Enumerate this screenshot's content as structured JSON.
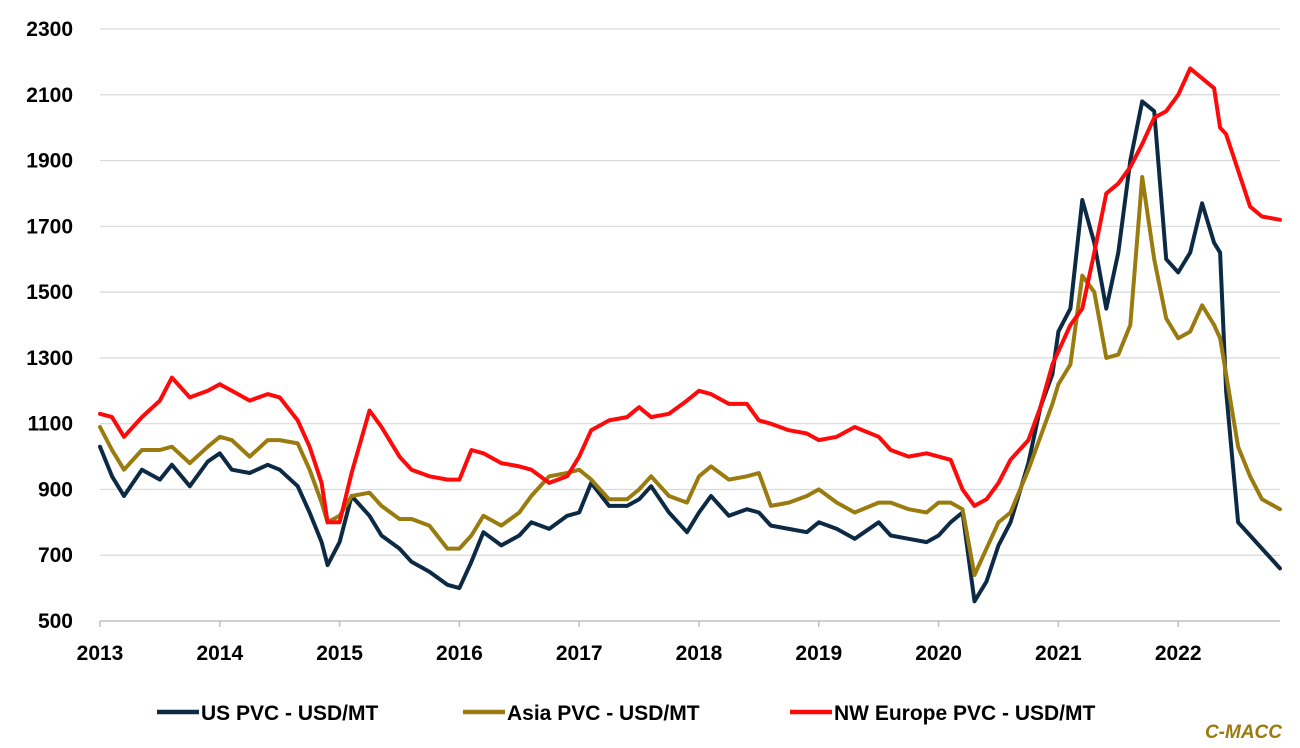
{
  "chart_data": {
    "type": "line",
    "title": "",
    "xlabel": "",
    "ylabel": "",
    "xlim": [
      2013.0,
      2022.85
    ],
    "ylim": [
      500,
      2300
    ],
    "y_ticks": [
      500,
      700,
      900,
      1100,
      1300,
      1500,
      1700,
      1900,
      2100,
      2300
    ],
    "x_ticks": [
      2013,
      2014,
      2015,
      2016,
      2017,
      2018,
      2019,
      2020,
      2021,
      2022
    ],
    "x_tick_labels": [
      "2013",
      "2014",
      "2015",
      "2016",
      "2017",
      "2018",
      "2019",
      "2020",
      "2021",
      "2022"
    ],
    "grid": "horizontal",
    "legend_position": "bottom",
    "credit": "C-MACC",
    "credit_color": "#9A7B10",
    "series": [
      {
        "name": "US PVC - USD/MT",
        "color": "#0D2A45",
        "x": [
          2013.0,
          2013.1,
          2013.2,
          2013.35,
          2013.5,
          2013.6,
          2013.75,
          2013.9,
          2014.0,
          2014.1,
          2014.25,
          2014.4,
          2014.5,
          2014.65,
          2014.75,
          2014.85,
          2014.9,
          2015.0,
          2015.1,
          2015.25,
          2015.35,
          2015.5,
          2015.6,
          2015.75,
          2015.9,
          2016.0,
          2016.1,
          2016.2,
          2016.35,
          2016.5,
          2016.6,
          2016.75,
          2016.9,
          2017.0,
          2017.1,
          2017.25,
          2017.4,
          2017.5,
          2017.6,
          2017.75,
          2017.9,
          2018.0,
          2018.1,
          2018.25,
          2018.4,
          2018.5,
          2018.6,
          2018.75,
          2018.9,
          2019.0,
          2019.15,
          2019.3,
          2019.5,
          2019.6,
          2019.75,
          2019.9,
          2020.0,
          2020.1,
          2020.2,
          2020.3,
          2020.4,
          2020.5,
          2020.6,
          2020.75,
          2020.85,
          2020.95,
          2021.0,
          2021.1,
          2021.2,
          2021.3,
          2021.4,
          2021.5,
          2021.6,
          2021.7,
          2021.8,
          2021.9,
          2022.0,
          2022.1,
          2022.2,
          2022.3,
          2022.35,
          2022.4,
          2022.5,
          2022.6,
          2022.7,
          2022.85
        ],
        "values": [
          1030,
          940,
          880,
          960,
          930,
          975,
          910,
          985,
          1010,
          960,
          950,
          975,
          960,
          910,
          830,
          740,
          670,
          740,
          880,
          820,
          760,
          720,
          680,
          650,
          610,
          600,
          680,
          770,
          730,
          760,
          800,
          780,
          820,
          830,
          920,
          850,
          850,
          870,
          910,
          830,
          770,
          830,
          880,
          820,
          840,
          830,
          790,
          780,
          770,
          800,
          780,
          750,
          800,
          760,
          750,
          740,
          760,
          800,
          830,
          560,
          620,
          730,
          800,
          980,
          1150,
          1250,
          1380,
          1450,
          1780,
          1650,
          1450,
          1620,
          1900,
          2080,
          2050,
          1600,
          1560,
          1620,
          1770,
          1650,
          1620,
          1200,
          800,
          760,
          720,
          660
        ]
      },
      {
        "name": "Asia PVC - USD/MT",
        "color": "#9A7B10",
        "x": [
          2013.0,
          2013.1,
          2013.2,
          2013.35,
          2013.5,
          2013.6,
          2013.75,
          2013.9,
          2014.0,
          2014.1,
          2014.25,
          2014.4,
          2014.5,
          2014.65,
          2014.75,
          2014.85,
          2014.9,
          2015.0,
          2015.1,
          2015.25,
          2015.35,
          2015.5,
          2015.6,
          2015.75,
          2015.9,
          2016.0,
          2016.1,
          2016.2,
          2016.35,
          2016.5,
          2016.6,
          2016.75,
          2016.9,
          2017.0,
          2017.1,
          2017.25,
          2017.4,
          2017.5,
          2017.6,
          2017.75,
          2017.9,
          2018.0,
          2018.1,
          2018.25,
          2018.4,
          2018.5,
          2018.6,
          2018.75,
          2018.9,
          2019.0,
          2019.15,
          2019.3,
          2019.5,
          2019.6,
          2019.75,
          2019.9,
          2020.0,
          2020.1,
          2020.2,
          2020.3,
          2020.4,
          2020.5,
          2020.6,
          2020.75,
          2020.85,
          2020.95,
          2021.0,
          2021.1,
          2021.2,
          2021.3,
          2021.4,
          2021.5,
          2021.6,
          2021.7,
          2021.8,
          2021.9,
          2022.0,
          2022.1,
          2022.2,
          2022.3,
          2022.35,
          2022.4,
          2022.5,
          2022.6,
          2022.7,
          2022.85
        ],
        "values": [
          1090,
          1020,
          960,
          1020,
          1020,
          1030,
          980,
          1030,
          1060,
          1050,
          1000,
          1050,
          1050,
          1040,
          960,
          860,
          800,
          820,
          880,
          890,
          850,
          810,
          810,
          790,
          720,
          720,
          760,
          820,
          790,
          830,
          880,
          940,
          950,
          960,
          930,
          870,
          870,
          900,
          940,
          880,
          860,
          940,
          970,
          930,
          940,
          950,
          850,
          860,
          880,
          900,
          860,
          830,
          860,
          860,
          840,
          830,
          860,
          860,
          840,
          640,
          720,
          800,
          830,
          960,
          1060,
          1160,
          1220,
          1280,
          1550,
          1500,
          1300,
          1310,
          1400,
          1850,
          1600,
          1420,
          1360,
          1380,
          1460,
          1400,
          1360,
          1250,
          1030,
          940,
          870,
          840
        ]
      },
      {
        "name": "NW Europe PVC - USD/MT",
        "color": "#FF0A0A",
        "x": [
          2013.0,
          2013.1,
          2013.2,
          2013.35,
          2013.5,
          2013.6,
          2013.75,
          2013.9,
          2014.0,
          2014.1,
          2014.25,
          2014.4,
          2014.5,
          2014.65,
          2014.75,
          2014.85,
          2014.9,
          2015.0,
          2015.1,
          2015.25,
          2015.35,
          2015.5,
          2015.6,
          2015.75,
          2015.9,
          2016.0,
          2016.1,
          2016.2,
          2016.35,
          2016.5,
          2016.6,
          2016.75,
          2016.9,
          2017.0,
          2017.1,
          2017.25,
          2017.4,
          2017.5,
          2017.6,
          2017.75,
          2017.9,
          2018.0,
          2018.1,
          2018.25,
          2018.4,
          2018.5,
          2018.6,
          2018.75,
          2018.9,
          2019.0,
          2019.15,
          2019.3,
          2019.5,
          2019.6,
          2019.75,
          2019.9,
          2020.0,
          2020.1,
          2020.2,
          2020.3,
          2020.4,
          2020.5,
          2020.6,
          2020.75,
          2020.85,
          2020.95,
          2021.0,
          2021.1,
          2021.2,
          2021.3,
          2021.4,
          2021.5,
          2021.6,
          2021.7,
          2021.8,
          2021.9,
          2022.0,
          2022.1,
          2022.2,
          2022.3,
          2022.35,
          2022.4,
          2022.5,
          2022.6,
          2022.7,
          2022.85
        ],
        "values": [
          1130,
          1120,
          1060,
          1120,
          1170,
          1240,
          1180,
          1200,
          1220,
          1200,
          1170,
          1190,
          1180,
          1110,
          1030,
          920,
          800,
          800,
          950,
          1140,
          1090,
          1000,
          960,
          940,
          930,
          930,
          1020,
          1010,
          980,
          970,
          960,
          920,
          940,
          1000,
          1080,
          1110,
          1120,
          1150,
          1120,
          1130,
          1170,
          1200,
          1190,
          1160,
          1160,
          1110,
          1100,
          1080,
          1070,
          1050,
          1060,
          1090,
          1060,
          1020,
          1000,
          1010,
          1000,
          990,
          900,
          850,
          870,
          920,
          990,
          1050,
          1150,
          1280,
          1320,
          1400,
          1450,
          1620,
          1800,
          1830,
          1880,
          1950,
          2030,
          2050,
          2100,
          2180,
          2150,
          2120,
          2000,
          1980,
          1870,
          1760,
          1730,
          1720
        ]
      }
    ]
  }
}
